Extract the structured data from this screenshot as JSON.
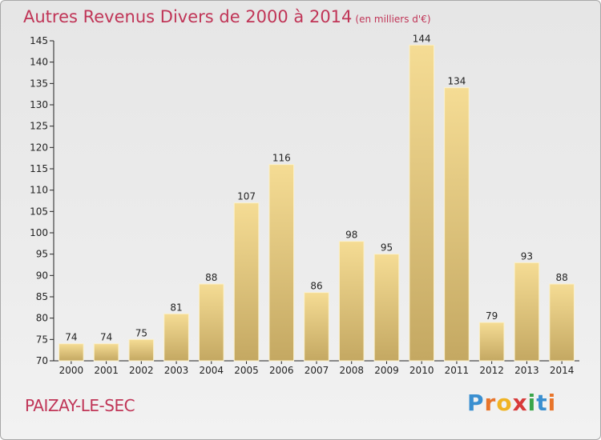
{
  "header": {
    "title": "Autres Revenus Divers de 2000 à 2014",
    "unit": "(en milliers d'€)"
  },
  "footer": {
    "city": "PAIZAY-LE-SEC",
    "logo_letters": [
      "P",
      "r",
      "o",
      "x",
      "i",
      "t",
      "i"
    ],
    "logo_colors": [
      "#3a8fd0",
      "#e8742a",
      "#f0b323",
      "#d83a3a",
      "#3aa54a",
      "#3a8fd0",
      "#e8742a"
    ]
  },
  "colors": {
    "bar_top": "#f5dc94",
    "bar_bottom": "#c4a862",
    "bar_edge": "#fbf1cc",
    "title": "#c03557",
    "grid": "#222222"
  },
  "chart_data": {
    "type": "bar",
    "title": "Autres Revenus Divers de 2000 à 2014",
    "subtitle": "(en milliers d'€)",
    "categories": [
      "2000",
      "2001",
      "2002",
      "2003",
      "2004",
      "2005",
      "2006",
      "2007",
      "2008",
      "2009",
      "2010",
      "2011",
      "2012",
      "2013",
      "2014"
    ],
    "values": [
      74,
      74,
      75,
      81,
      88,
      107,
      116,
      86,
      98,
      95,
      144,
      134,
      79,
      93,
      88
    ],
    "ylim": [
      70,
      145
    ],
    "yticks": [
      70,
      75,
      80,
      85,
      90,
      95,
      100,
      105,
      110,
      115,
      120,
      125,
      130,
      135,
      140,
      145
    ],
    "grid": false,
    "legend": "none"
  }
}
